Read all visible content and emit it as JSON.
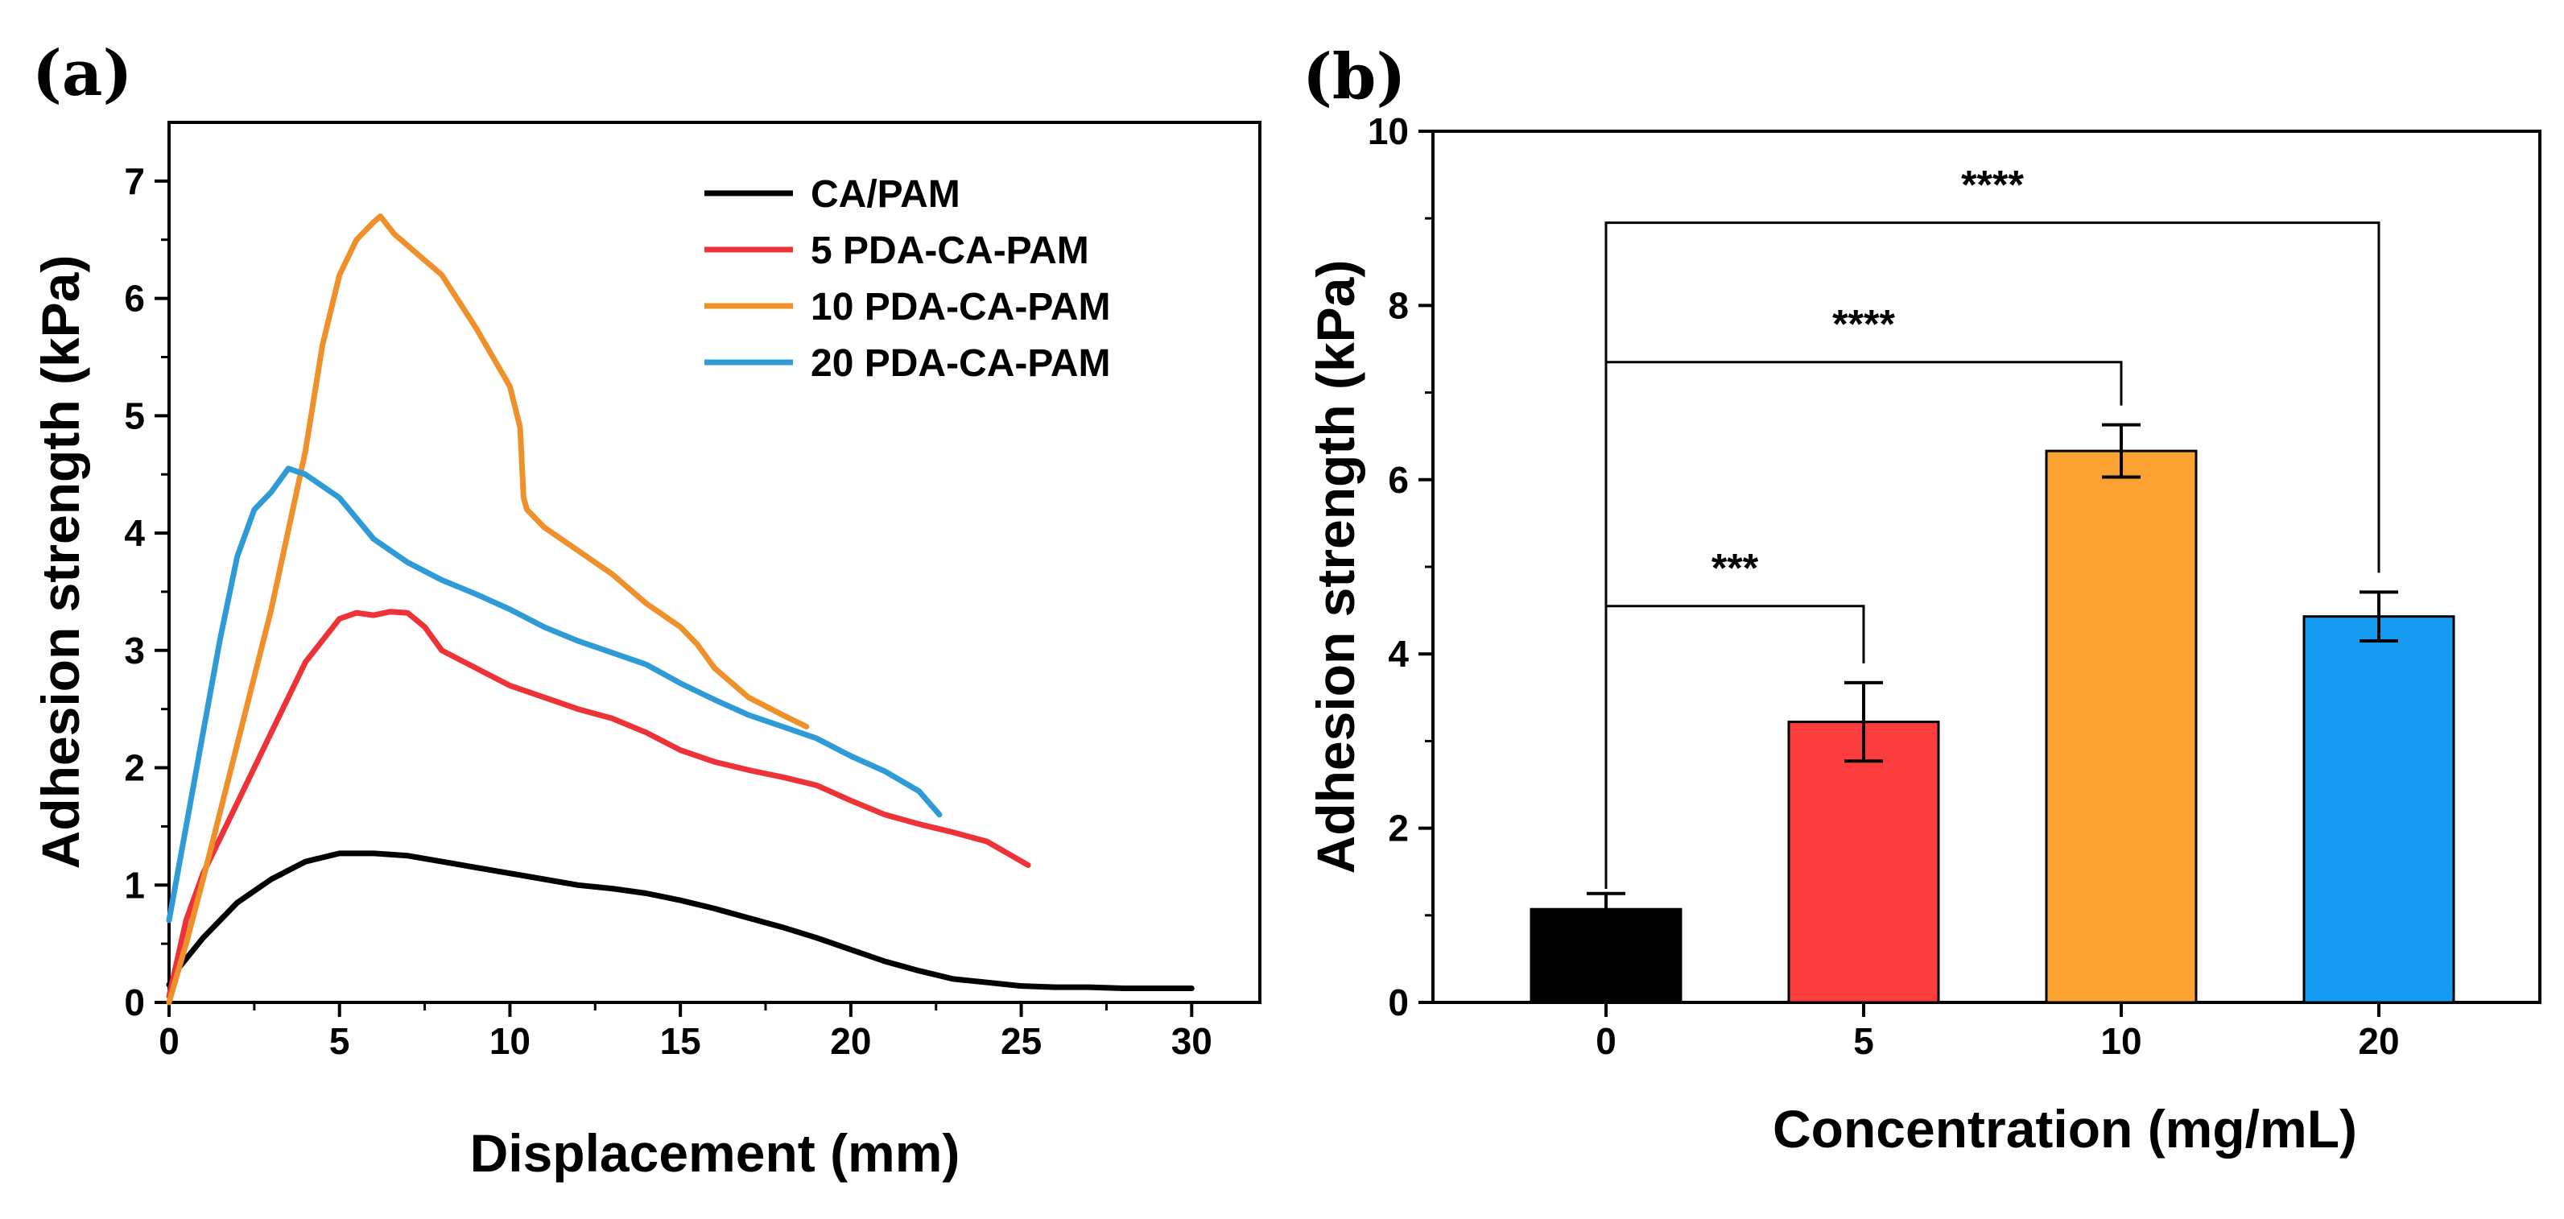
{
  "panel_a_label": "(a)",
  "panel_b_label": "(b)",
  "chart_data": [
    {
      "type": "line",
      "xlabel": "Displacement (mm)",
      "ylabel": "Adhesion strength (kPa)",
      "xlim": [
        0,
        32
      ],
      "ylim": [
        0,
        7.5
      ],
      "xticks": [
        0,
        5,
        10,
        15,
        20,
        25,
        30
      ],
      "yticks": [
        0,
        1,
        2,
        3,
        4,
        5,
        6,
        7
      ],
      "legend_position": "top-right",
      "series": [
        {
          "name": "CA/PAM",
          "color": "#000000",
          "points": [
            [
              0,
              0.15
            ],
            [
              0.3,
              0.3
            ],
            [
              1,
              0.55
            ],
            [
              2,
              0.85
            ],
            [
              3,
              1.05
            ],
            [
              4,
              1.2
            ],
            [
              5,
              1.27
            ],
            [
              6,
              1.27
            ],
            [
              7,
              1.25
            ],
            [
              8,
              1.2
            ],
            [
              9,
              1.15
            ],
            [
              10,
              1.1
            ],
            [
              11,
              1.05
            ],
            [
              12,
              1.0
            ],
            [
              13,
              0.97
            ],
            [
              14,
              0.93
            ],
            [
              15,
              0.87
            ],
            [
              16,
              0.8
            ],
            [
              17,
              0.72
            ],
            [
              18,
              0.64
            ],
            [
              19,
              0.55
            ],
            [
              20,
              0.45
            ],
            [
              21,
              0.35
            ],
            [
              22,
              0.27
            ],
            [
              23,
              0.2
            ],
            [
              24,
              0.17
            ],
            [
              25,
              0.14
            ],
            [
              26,
              0.13
            ],
            [
              27,
              0.13
            ],
            [
              28,
              0.12
            ],
            [
              29,
              0.12
            ],
            [
              30,
              0.12
            ]
          ]
        },
        {
          "name": "5 PDA-CA-PAM",
          "color": "#ee3338",
          "points": [
            [
              0,
              0.05
            ],
            [
              0.5,
              0.7
            ],
            [
              1,
              1.1
            ],
            [
              2,
              1.7
            ],
            [
              3,
              2.3
            ],
            [
              4,
              2.9
            ],
            [
              5,
              3.27
            ],
            [
              5.5,
              3.32
            ],
            [
              6,
              3.3
            ],
            [
              6.5,
              3.33
            ],
            [
              7,
              3.32
            ],
            [
              7.5,
              3.2
            ],
            [
              8,
              3.0
            ],
            [
              9,
              2.85
            ],
            [
              10,
              2.7
            ],
            [
              11,
              2.6
            ],
            [
              12,
              2.5
            ],
            [
              13,
              2.42
            ],
            [
              14,
              2.3
            ],
            [
              15,
              2.15
            ],
            [
              16,
              2.05
            ],
            [
              17,
              1.98
            ],
            [
              18,
              1.92
            ],
            [
              19,
              1.85
            ],
            [
              20,
              1.72
            ],
            [
              21,
              1.6
            ],
            [
              22,
              1.52
            ],
            [
              23,
              1.45
            ],
            [
              24,
              1.37
            ],
            [
              25.2,
              1.17
            ]
          ]
        },
        {
          "name": "10 PDA-CA-PAM",
          "color": "#f0902a",
          "points": [
            [
              0,
              0
            ],
            [
              0.5,
              0.5
            ],
            [
              1,
              1.05
            ],
            [
              2,
              2.2
            ],
            [
              3,
              3.35
            ],
            [
              4,
              4.7
            ],
            [
              4.5,
              5.6
            ],
            [
              5,
              6.2
            ],
            [
              5.5,
              6.5
            ],
            [
              6,
              6.65
            ],
            [
              6.2,
              6.7
            ],
            [
              6.6,
              6.55
            ],
            [
              7,
              6.45
            ],
            [
              8,
              6.2
            ],
            [
              9,
              5.75
            ],
            [
              10,
              5.25
            ],
            [
              10.3,
              4.9
            ],
            [
              10.4,
              4.3
            ],
            [
              10.5,
              4.2
            ],
            [
              11,
              4.05
            ],
            [
              12,
              3.85
            ],
            [
              13,
              3.65
            ],
            [
              14,
              3.4
            ],
            [
              15,
              3.2
            ],
            [
              15.5,
              3.05
            ],
            [
              16,
              2.85
            ],
            [
              17,
              2.6
            ],
            [
              18,
              2.45
            ],
            [
              18.7,
              2.35
            ]
          ]
        },
        {
          "name": "20 PDA-CA-PAM",
          "color": "#2e9bd6",
          "points": [
            [
              0,
              0.7
            ],
            [
              0.5,
              1.5
            ],
            [
              1,
              2.3
            ],
            [
              1.5,
              3.1
            ],
            [
              2,
              3.8
            ],
            [
              2.5,
              4.2
            ],
            [
              3,
              4.35
            ],
            [
              3.5,
              4.55
            ],
            [
              4,
              4.5
            ],
            [
              5,
              4.3
            ],
            [
              6,
              3.95
            ],
            [
              7,
              3.75
            ],
            [
              8,
              3.6
            ],
            [
              9,
              3.48
            ],
            [
              10,
              3.35
            ],
            [
              11,
              3.2
            ],
            [
              12,
              3.08
            ],
            [
              13,
              2.98
            ],
            [
              14,
              2.88
            ],
            [
              15,
              2.72
            ],
            [
              16,
              2.58
            ],
            [
              17,
              2.45
            ],
            [
              18,
              2.35
            ],
            [
              19,
              2.25
            ],
            [
              20,
              2.1
            ],
            [
              21,
              1.97
            ],
            [
              22,
              1.8
            ],
            [
              22.6,
              1.6
            ]
          ]
        }
      ]
    },
    {
      "type": "bar",
      "xlabel": "Concentration (mg/mL)",
      "ylabel": "Adhesion strength (kPa)",
      "ylim": [
        0,
        10
      ],
      "yticks": [
        0,
        2,
        4,
        6,
        8,
        10
      ],
      "categories": [
        "0",
        "5",
        "10",
        "20"
      ],
      "values": [
        1.07,
        3.22,
        6.33,
        4.43
      ],
      "errors": [
        0.18,
        0.45,
        0.3,
        0.28
      ],
      "colors": [
        "#000000",
        "#fc3d3d",
        "#fba233",
        "#159bf2"
      ],
      "significance": [
        {
          "from": 0,
          "to": 1,
          "label": "***",
          "level": 4.55
        },
        {
          "from": 0,
          "to": 2,
          "label": "****",
          "level": 7.35
        },
        {
          "from": 0,
          "to": 3,
          "label": "****",
          "level": 8.95
        }
      ]
    }
  ]
}
